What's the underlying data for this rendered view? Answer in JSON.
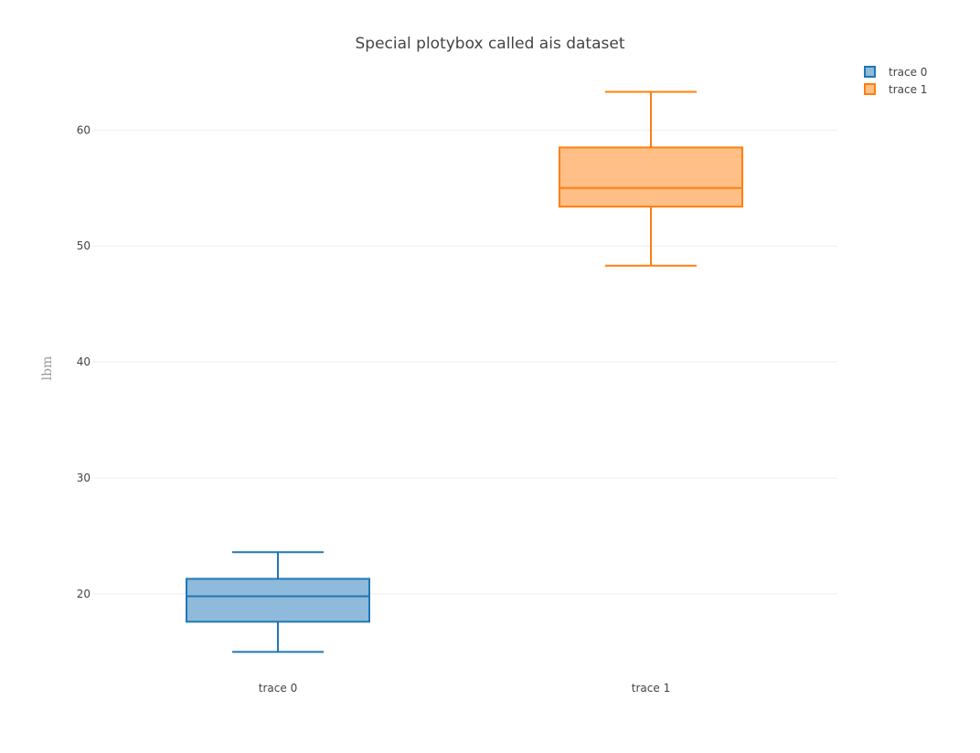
{
  "chart_data": {
    "type": "box",
    "title": "Special plotybox called ais dataset",
    "xlabel": "",
    "ylabel": "lbm",
    "categories": [
      "trace 0",
      "trace 1"
    ],
    "y_ticks": [
      20,
      30,
      40,
      50,
      60
    ],
    "ylim": [
      12.9,
      65.7
    ],
    "grid": true,
    "legend_position": "top-right",
    "series": [
      {
        "name": "trace 0",
        "category": "trace 0",
        "lower_whisker": 15.0,
        "q1": 17.6,
        "median": 19.8,
        "q3": 21.3,
        "upper_whisker": 23.6,
        "line_color": "#1f77b4",
        "fill_color": "#8fbadb"
      },
      {
        "name": "trace 1",
        "category": "trace 1",
        "lower_whisker": 48.3,
        "q1": 53.4,
        "median": 55.0,
        "q3": 58.5,
        "upper_whisker": 63.3,
        "line_color": "#ff7f0e",
        "fill_color": "#ffbf86"
      }
    ]
  }
}
